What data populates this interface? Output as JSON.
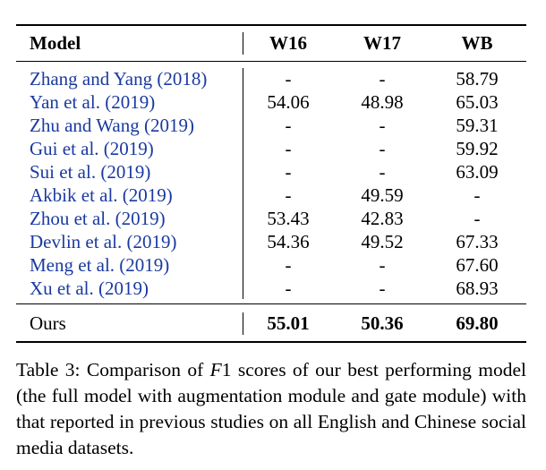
{
  "table": {
    "headers": [
      "Model",
      "W16",
      "W17",
      "WB"
    ],
    "rows": [
      {
        "model": "Zhang and Yang (2018)",
        "w16": "-",
        "w17": "-",
        "wb": "58.79"
      },
      {
        "model": "Yan et al. (2019)",
        "w16": "54.06",
        "w17": "48.98",
        "wb": "65.03"
      },
      {
        "model": "Zhu and Wang (2019)",
        "w16": "-",
        "w17": "-",
        "wb": "59.31"
      },
      {
        "model": "Gui et al. (2019)",
        "w16": "-",
        "w17": "-",
        "wb": "59.92"
      },
      {
        "model": "Sui et al. (2019)",
        "w16": "-",
        "w17": "-",
        "wb": "63.09"
      },
      {
        "model": "Akbik et al. (2019)",
        "w16": "-",
        "w17": "49.59",
        "wb": "-"
      },
      {
        "model": "Zhou et al. (2019)",
        "w16": "53.43",
        "w17": "42.83",
        "wb": "-"
      },
      {
        "model": "Devlin et al. (2019)",
        "w16": "54.36",
        "w17": "49.52",
        "wb": "67.33"
      },
      {
        "model": "Meng et al. (2019)",
        "w16": "-",
        "w17": "-",
        "wb": "67.60"
      },
      {
        "model": "Xu et al. (2019)",
        "w16": "-",
        "w17": "-",
        "wb": "68.93"
      }
    ],
    "ours": {
      "model": "Ours",
      "w16": "55.01",
      "w17": "50.36",
      "wb": "69.80"
    }
  },
  "caption": {
    "prefix": "Table 3: Comparison of ",
    "metric": "F",
    "rest": "1 scores of our best performing model (the full model with augmentation module and gate module) with that reported in previous studies on all English and Chinese social media datasets."
  }
}
